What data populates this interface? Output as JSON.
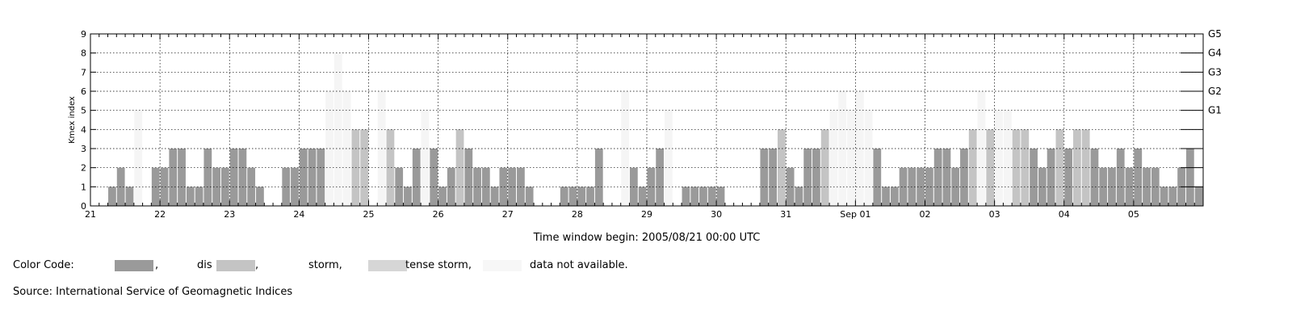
{
  "chart_data": {
    "type": "bar",
    "title": "",
    "ylabel": "Kmex index",
    "xlabel": "Time window begin: 2005/08/21 00:00 UTC",
    "ylim": [
      0,
      9
    ],
    "y_ticks": [
      "0",
      "1",
      "2",
      "3",
      "4",
      "5",
      "6",
      "7",
      "8",
      "9"
    ],
    "right_axis_labels": [
      {
        "label": "G1",
        "y": 5
      },
      {
        "label": "G2",
        "y": 6
      },
      {
        "label": "G3",
        "y": 7
      },
      {
        "label": "G4",
        "y": 8
      },
      {
        "label": "G5",
        "y": 9
      }
    ],
    "x_range_days": [
      0,
      16
    ],
    "x_ticks": [
      "21",
      "22",
      "23",
      "24",
      "25",
      "26",
      "27",
      "28",
      "29",
      "30",
      "31",
      "Sep 01",
      "02",
      "03",
      "04",
      "05"
    ],
    "bars_per_day": 8,
    "grid": true,
    "colors": {
      "quiet": "#9a9a9a",
      "disturbed": "#c4c4c4",
      "storm": "#d6d6d6",
      "intense_storm": "#f5f5f5",
      "data_not_available": "#fafafa"
    },
    "series": [
      {
        "values": [
          null,
          null,
          1,
          2,
          1,
          5,
          null,
          2,
          2,
          3,
          3,
          1,
          1,
          3,
          2,
          2,
          3,
          3,
          2,
          1,
          null,
          null,
          2,
          2,
          3,
          3,
          3,
          6,
          8,
          6,
          4,
          4,
          null,
          6,
          4,
          2,
          1,
          3,
          5,
          3,
          1,
          2,
          4,
          3,
          2,
          2,
          1,
          2,
          2,
          2,
          1,
          null,
          null,
          null,
          1,
          1,
          1,
          1,
          3,
          null,
          null,
          6,
          2,
          1,
          2,
          3,
          5,
          null,
          1,
          1,
          1,
          1,
          1,
          null,
          null,
          null,
          null,
          3,
          3,
          4,
          2,
          1,
          3,
          3,
          4,
          5,
          6,
          5,
          6,
          5,
          3,
          1,
          1,
          2,
          2,
          2,
          2,
          3,
          3,
          2,
          3,
          4,
          6,
          4,
          5,
          5,
          4,
          4,
          3,
          2,
          3,
          4,
          3,
          4,
          4,
          3,
          2,
          2,
          3,
          2,
          3,
          2,
          2,
          1,
          1,
          2,
          3,
          1
        ],
        "levels": [
          "quiet",
          "quiet",
          "quiet",
          "quiet",
          "quiet",
          "intense_storm",
          "quiet",
          "quiet",
          "quiet",
          "quiet",
          "quiet",
          "quiet",
          "quiet",
          "quiet",
          "quiet",
          "quiet",
          "quiet",
          "quiet",
          "quiet",
          "quiet",
          "quiet",
          "quiet",
          "quiet",
          "quiet",
          "quiet",
          "quiet",
          "quiet",
          "intense_storm",
          "intense_storm",
          "intense_storm",
          "disturbed",
          "disturbed",
          "quiet",
          "intense_storm",
          "disturbed",
          "quiet",
          "quiet",
          "quiet",
          "intense_storm",
          "quiet",
          "quiet",
          "quiet",
          "disturbed",
          "quiet",
          "quiet",
          "quiet",
          "quiet",
          "quiet",
          "quiet",
          "quiet",
          "quiet",
          "quiet",
          "quiet",
          "quiet",
          "quiet",
          "quiet",
          "quiet",
          "quiet",
          "quiet",
          "quiet",
          "quiet",
          "intense_storm",
          "quiet",
          "quiet",
          "quiet",
          "quiet",
          "intense_storm",
          "quiet",
          "quiet",
          "quiet",
          "quiet",
          "quiet",
          "quiet",
          "quiet",
          "quiet",
          "quiet",
          "quiet",
          "quiet",
          "quiet",
          "disturbed",
          "quiet",
          "quiet",
          "quiet",
          "quiet",
          "disturbed",
          "intense_storm",
          "intense_storm",
          "intense_storm",
          "intense_storm",
          "intense_storm",
          "quiet",
          "quiet",
          "quiet",
          "quiet",
          "quiet",
          "quiet",
          "quiet",
          "quiet",
          "quiet",
          "quiet",
          "quiet",
          "disturbed",
          "intense_storm",
          "disturbed",
          "intense_storm",
          "intense_storm",
          "disturbed",
          "disturbed",
          "quiet",
          "quiet",
          "quiet",
          "disturbed",
          "quiet",
          "disturbed",
          "disturbed",
          "quiet",
          "quiet",
          "quiet",
          "quiet",
          "quiet",
          "quiet",
          "quiet",
          "quiet",
          "quiet",
          "quiet",
          "quiet",
          "quiet",
          "quiet"
        ]
      }
    ]
  },
  "legend": {
    "prefix": "Color Code:",
    "items": [
      {
        "level": "quiet",
        "label": ","
      },
      {
        "level": "disturbed",
        "label": "dis"
      },
      {
        "level": "disturbed",
        "label": ","
      },
      {
        "level": "storm",
        "label": "storm,"
      },
      {
        "level": "storm",
        "label": "tense storm,"
      },
      {
        "level": "data_not_available",
        "label": "data not available."
      }
    ]
  },
  "source": "Source: International Service of Geomagnetic Indices"
}
